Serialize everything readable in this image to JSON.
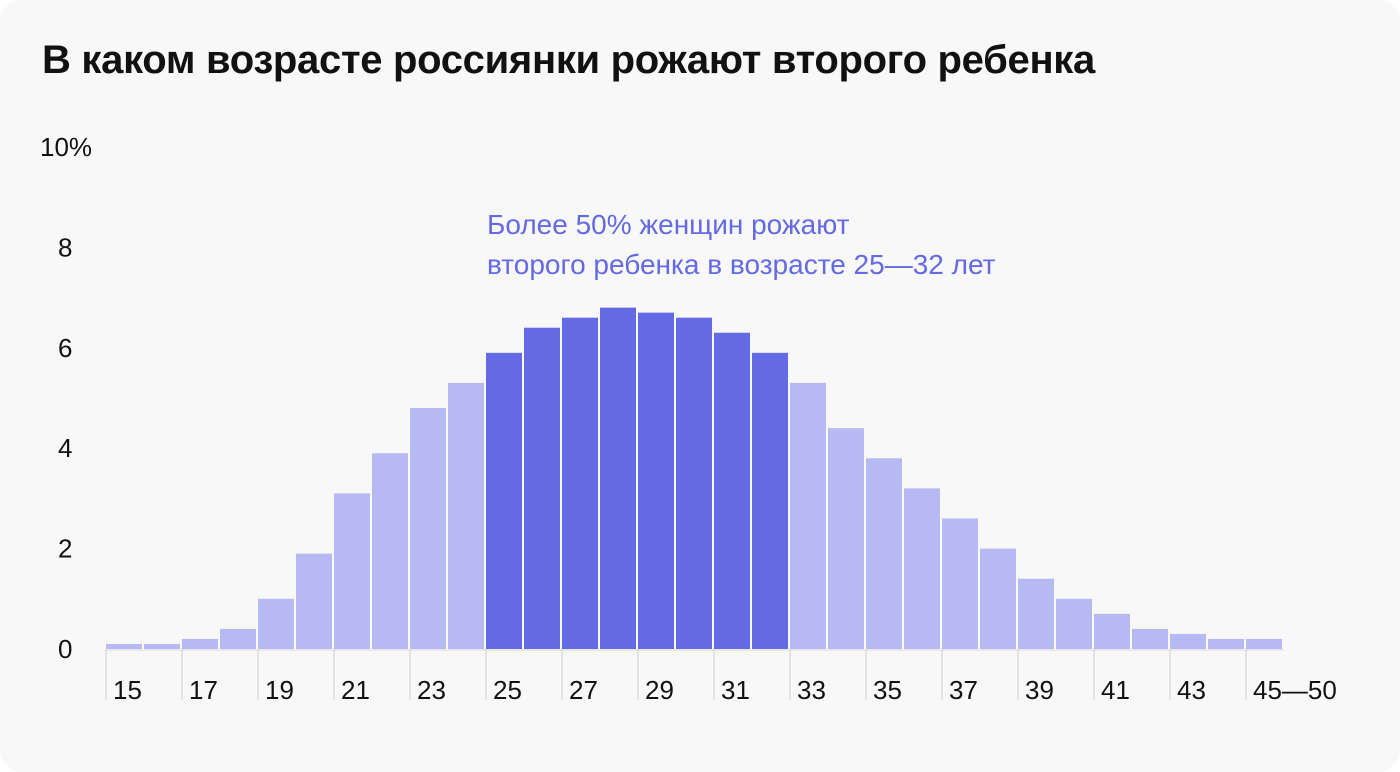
{
  "chart_data": {
    "type": "bar",
    "title": "В каком возрасте россиянки рожают второго ребенка",
    "xlabel": "",
    "ylabel": "",
    "ylim": [
      0,
      10
    ],
    "y_ticks": [
      "0",
      "2",
      "4",
      "6",
      "8",
      "10%"
    ],
    "x_tick_labels": [
      "15",
      "17",
      "19",
      "21",
      "23",
      "25",
      "27",
      "29",
      "31",
      "33",
      "35",
      "37",
      "39",
      "41",
      "43",
      "45—50"
    ],
    "categories": [
      "15",
      "16",
      "17",
      "18",
      "19",
      "20",
      "21",
      "22",
      "23",
      "24",
      "25",
      "26",
      "27",
      "28",
      "29",
      "30",
      "31",
      "32",
      "33",
      "34",
      "35",
      "36",
      "37",
      "38",
      "39",
      "40",
      "41",
      "42",
      "43",
      "44",
      "45—50"
    ],
    "values": [
      0.1,
      0.1,
      0.2,
      0.4,
      1.0,
      1.9,
      3.1,
      3.9,
      4.8,
      5.3,
      5.9,
      6.4,
      6.6,
      6.8,
      6.7,
      6.6,
      6.3,
      5.9,
      5.3,
      4.4,
      3.8,
      3.2,
      2.6,
      2.0,
      1.4,
      1.0,
      0.7,
      0.4,
      0.3,
      0.2,
      0.2
    ],
    "highlight_range": [
      "25",
      "32"
    ],
    "colors": {
      "base": "#b7b9f2",
      "highlight": "#636ae4",
      "annotation": "#636ae4"
    },
    "annotation": [
      "Более 50% женщин рожают",
      "второго ребенка в возрасте 25—32 лет"
    ],
    "grid": false,
    "legend": "none"
  }
}
